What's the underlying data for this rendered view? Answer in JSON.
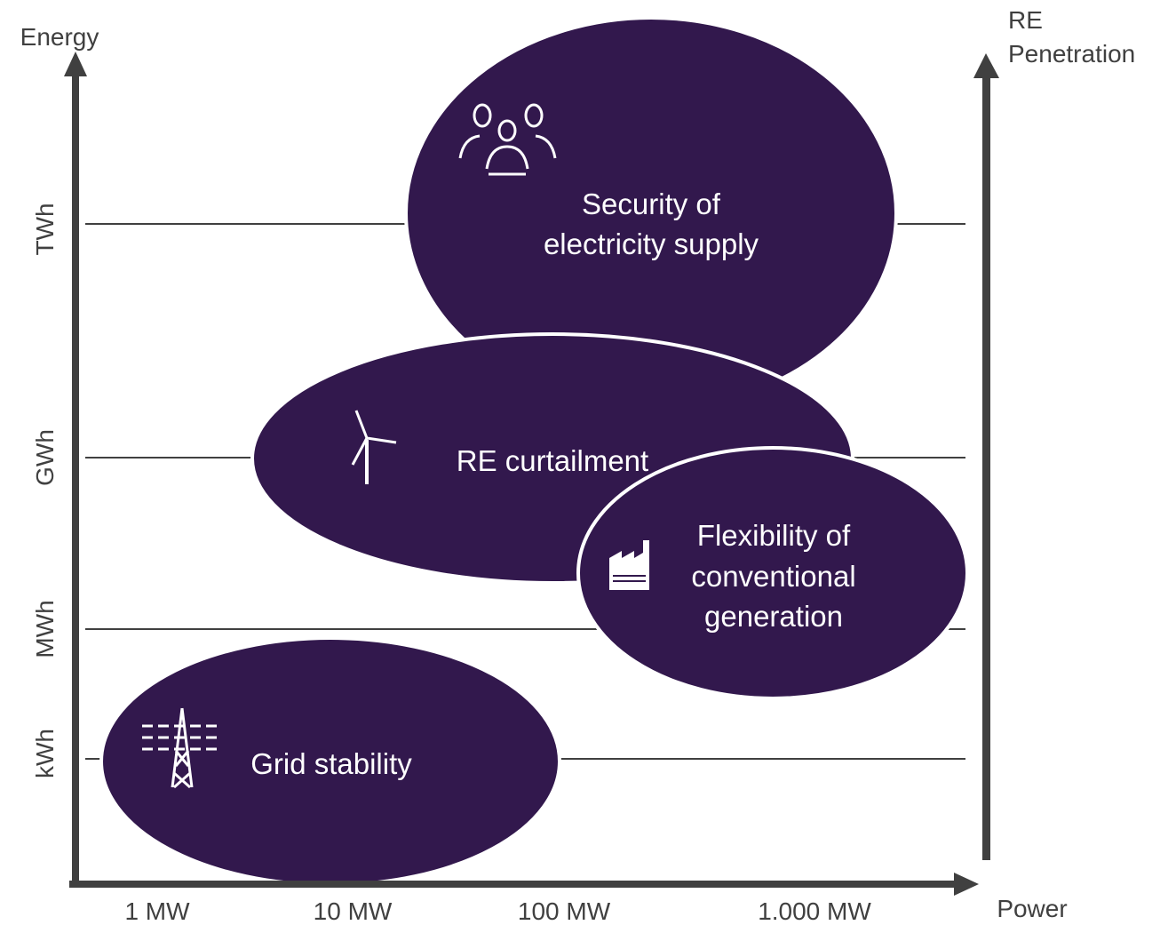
{
  "axes": {
    "y_label": "Energy",
    "x_label": "Power",
    "right_label": [
      "RE",
      "Penetration"
    ],
    "y_levels": [
      "TWh",
      "GWh",
      "MWh",
      "kWh"
    ],
    "x_levels": [
      "1 MW",
      "10 MW",
      "100 MW",
      "1.000 MW"
    ]
  },
  "regions": [
    {
      "label": [
        "Security of",
        "electricity supply"
      ]
    },
    {
      "label": [
        "RE curtailment"
      ]
    },
    {
      "label": [
        "Flexibility of",
        "conventional",
        "generation"
      ]
    },
    {
      "label": [
        "Grid stability"
      ]
    }
  ]
}
